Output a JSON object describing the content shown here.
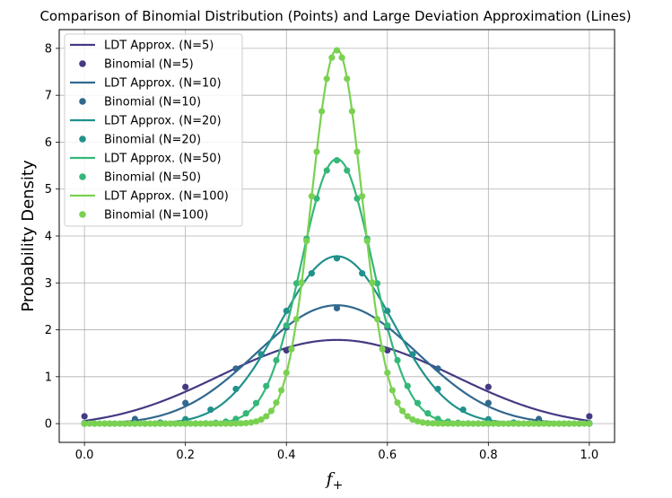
{
  "chart_data": {
    "type": "line",
    "title": "Comparison of Binomial Distribution (Points) and Large Deviation Approximation (Lines)",
    "xlabel": "f",
    "xlabel_sub": "+",
    "ylabel": "Probability Density",
    "xlim": [
      -0.05,
      1.05
    ],
    "ylim": [
      -0.4,
      8.4
    ],
    "xticks": [
      0.0,
      0.2,
      0.4,
      0.6,
      0.8,
      1.0
    ],
    "xtick_labels": [
      "0.0",
      "0.2",
      "0.4",
      "0.6",
      "0.8",
      "1.0"
    ],
    "yticks": [
      0,
      1,
      2,
      3,
      4,
      5,
      6,
      7,
      8
    ],
    "ytick_labels": [
      "0",
      "1",
      "2",
      "3",
      "4",
      "5",
      "6",
      "7",
      "8"
    ],
    "grid": true,
    "legend_position": "top-left",
    "series_N": [
      5,
      10,
      20,
      50,
      100
    ],
    "line_series_names": [
      "LDT Approx. (N=5)",
      "LDT Approx. (N=10)",
      "LDT Approx. (N=20)",
      "LDT Approx. (N=50)",
      "LDT Approx. (N=100)"
    ],
    "point_series_names": [
      "Binomial (N=5)",
      "Binomial (N=10)",
      "Binomial (N=20)",
      "Binomial (N=50)",
      "Binomial (N=100)"
    ],
    "colors": [
      "#443a83",
      "#31688e",
      "#21918c",
      "#35b779",
      "#7ad151"
    ],
    "legend": [
      {
        "label": "LDT Approx. (N=5)",
        "kind": "line",
        "color": "#443a83"
      },
      {
        "label": "Binomial (N=5)",
        "kind": "point",
        "color": "#443a83"
      },
      {
        "label": "LDT Approx. (N=10)",
        "kind": "line",
        "color": "#31688e"
      },
      {
        "label": "Binomial (N=10)",
        "kind": "point",
        "color": "#31688e"
      },
      {
        "label": "LDT Approx. (N=20)",
        "kind": "line",
        "color": "#21918c"
      },
      {
        "label": "Binomial (N=20)",
        "kind": "point",
        "color": "#21918c"
      },
      {
        "label": "LDT Approx. (N=50)",
        "kind": "line",
        "color": "#35b779"
      },
      {
        "label": "Binomial (N=50)",
        "kind": "point",
        "color": "#35b779"
      },
      {
        "label": "LDT Approx. (N=100)",
        "kind": "line",
        "color": "#7ad151"
      },
      {
        "label": "Binomial (N=100)",
        "kind": "point",
        "color": "#7ad151"
      }
    ]
  }
}
